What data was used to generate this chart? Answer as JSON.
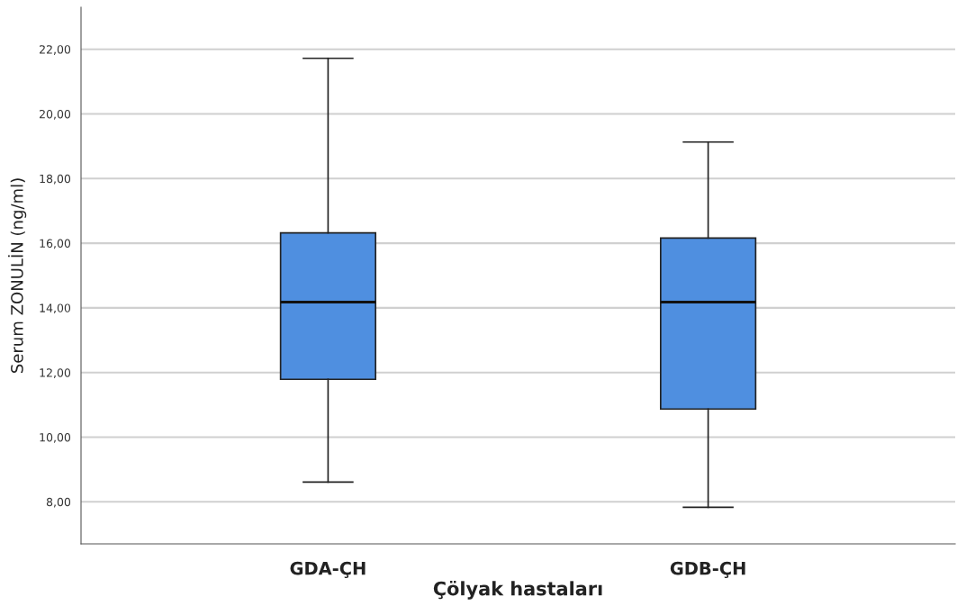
{
  "chart_data": {
    "type": "box",
    "xlabel": "Çölyak hastaları",
    "ylabel": "Serum ZONULİN (ng/ml)",
    "categories": [
      "GDA-ÇH",
      "GDB-ÇH"
    ],
    "color": "#4f8fe0",
    "boxes": [
      {
        "low": 8.61,
        "q1": 11.79,
        "median": 14.18,
        "q3": 16.32,
        "high": 21.72
      },
      {
        "low": 7.83,
        "q1": 10.87,
        "median": 14.18,
        "q3": 16.16,
        "high": 19.13
      }
    ],
    "ylim": [
      6.7,
      23.3
    ],
    "yticks": [
      {
        "value": 8,
        "label": "8,00"
      },
      {
        "value": 10,
        "label": "10,00"
      },
      {
        "value": 12,
        "label": "12,00"
      },
      {
        "value": 14,
        "label": "14,00"
      },
      {
        "value": 16,
        "label": "16,00"
      },
      {
        "value": 18,
        "label": "18,00"
      },
      {
        "value": 20,
        "label": "20,00"
      },
      {
        "value": 22,
        "label": "22,00"
      }
    ],
    "grid": "y"
  }
}
